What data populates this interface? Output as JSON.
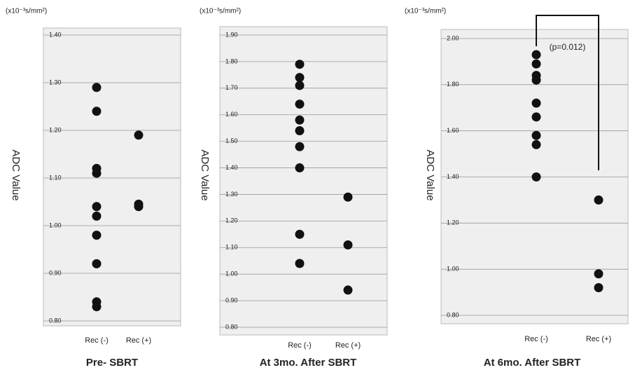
{
  "chart_data": [
    {
      "type": "dot",
      "title": "Pre- SBRT",
      "y_label": "ADC Value",
      "units": "(x10⁻³s/mm²)",
      "categories": [
        "Rec (-)",
        "Rec (+)"
      ],
      "color": "#111111",
      "values": [
        [
          1.29,
          1.24,
          1.12,
          1.11,
          1.04,
          1.02,
          0.98,
          0.92,
          0.84,
          0.83
        ],
        [
          1.19,
          1.045,
          1.04
        ]
      ],
      "ylim": [
        0.8,
        1.4
      ],
      "grid": true,
      "yticks": [
        {
          "value": 0.8,
          "label": "0.80"
        },
        {
          "value": 0.9,
          "label": "0.90"
        },
        {
          "value": 1.0,
          "label": "1.00"
        },
        {
          "value": 1.1,
          "label": "1.10"
        },
        {
          "value": 1.2,
          "label": "1.20"
        },
        {
          "value": 1.3,
          "label": "1.30"
        },
        {
          "value": 1.4,
          "label": "1.40"
        }
      ]
    },
    {
      "type": "dot",
      "title": "At 3mo. After SBRT",
      "y_label": "ADC Value",
      "units": "(x10⁻³s/mm²)",
      "categories": [
        "Rec (-)",
        "Rec (+)"
      ],
      "color": "#111111",
      "values": [
        [
          1.79,
          1.74,
          1.71,
          1.64,
          1.58,
          1.54,
          1.48,
          1.4,
          1.15,
          1.04
        ],
        [
          1.29,
          1.11,
          0.94
        ]
      ],
      "ylim": [
        0.8,
        1.9
      ],
      "grid": true,
      "yticks": [
        {
          "value": 0.8,
          "label": "0.80"
        },
        {
          "value": 0.9,
          "label": "0.90"
        },
        {
          "value": 1.0,
          "label": "1.00"
        },
        {
          "value": 1.1,
          "label": "1.10"
        },
        {
          "value": 1.2,
          "label": "1.20"
        },
        {
          "value": 1.3,
          "label": "1.30"
        },
        {
          "value": 1.4,
          "label": "1.40"
        },
        {
          "value": 1.5,
          "label": "1.50"
        },
        {
          "value": 1.6,
          "label": "1.60"
        },
        {
          "value": 1.7,
          "label": "1.70"
        },
        {
          "value": 1.8,
          "label": "1.80"
        },
        {
          "value": 1.9,
          "label": "1.90"
        }
      ]
    },
    {
      "type": "dot",
      "title": "At 6mo. After SBRT",
      "y_label": "ADC Value",
      "units": "(x10⁻³s/mm²)",
      "categories": [
        "Rec (-)",
        "Rec (+)"
      ],
      "color": "#111111",
      "annotation": "(p=0.012)",
      "values": [
        [
          1.93,
          1.89,
          1.84,
          1.82,
          1.72,
          1.66,
          1.58,
          1.54,
          1.4
        ],
        [
          1.3,
          0.98,
          0.92
        ]
      ],
      "ylim": [
        0.8,
        2.0
      ],
      "grid": true,
      "yticks": [
        {
          "value": 0.8,
          "label": "0.80"
        },
        {
          "value": 1.0,
          "label": "1.00"
        },
        {
          "value": 1.2,
          "label": "1.20"
        },
        {
          "value": 1.4,
          "label": "1.40"
        },
        {
          "value": 1.6,
          "label": "1.60"
        },
        {
          "value": 1.8,
          "label": "1.80"
        },
        {
          "value": 2.0,
          "label": "2.00"
        }
      ]
    }
  ]
}
